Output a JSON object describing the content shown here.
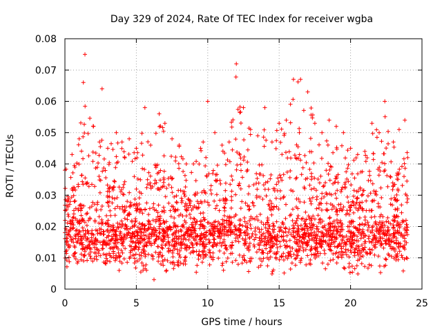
{
  "chart_data": {
    "type": "scatter",
    "title": "Day 329 of 2024, Rate Of TEC Index for receiver wgba",
    "xlabel": "GPS time / hours",
    "ylabel": "ROTI / TECUs",
    "xlim": [
      0,
      25
    ],
    "ylim": [
      0,
      0.08
    ],
    "x_ticks": [
      0,
      5,
      10,
      15,
      20,
      25
    ],
    "x_tick_labels": [
      "0",
      "5",
      "10",
      "15",
      "20",
      "25"
    ],
    "y_ticks": [
      0,
      0.01,
      0.02,
      0.03,
      0.04,
      0.05,
      0.06,
      0.07,
      0.08
    ],
    "y_tick_labels": [
      "0",
      "0.01",
      "0.02",
      "0.03",
      "0.04",
      "0.05",
      "0.06",
      "0.07",
      "0.08"
    ],
    "grid": true,
    "marker": "+",
    "series_color": "#ff0000",
    "series": [
      {
        "name": "ROTI",
        "x_range": [
          0,
          24
        ],
        "typical_range": [
          0.008,
          0.025
        ],
        "envelope": [
          {
            "hour": 0,
            "max": 0.038
          },
          {
            "hour": 0.5,
            "max": 0.043
          },
          {
            "hour": 1.0,
            "max": 0.048
          },
          {
            "hour": 1.4,
            "max": 0.075
          },
          {
            "hour": 2.0,
            "max": 0.052
          },
          {
            "hour": 2.6,
            "max": 0.064
          },
          {
            "hour": 3.0,
            "max": 0.045
          },
          {
            "hour": 3.6,
            "max": 0.05
          },
          {
            "hour": 4.0,
            "max": 0.047
          },
          {
            "hour": 4.5,
            "max": 0.048
          },
          {
            "hour": 5.0,
            "max": 0.045
          },
          {
            "hour": 5.6,
            "max": 0.058
          },
          {
            "hour": 6.0,
            "max": 0.046
          },
          {
            "hour": 6.6,
            "max": 0.056
          },
          {
            "hour": 7.0,
            "max": 0.053
          },
          {
            "hour": 7.5,
            "max": 0.048
          },
          {
            "hour": 8.0,
            "max": 0.046
          },
          {
            "hour": 8.5,
            "max": 0.04
          },
          {
            "hour": 9.0,
            "max": 0.04
          },
          {
            "hour": 9.5,
            "max": 0.045
          },
          {
            "hour": 10.0,
            "max": 0.06
          },
          {
            "hour": 10.5,
            "max": 0.05
          },
          {
            "hour": 11.0,
            "max": 0.046
          },
          {
            "hour": 11.5,
            "max": 0.047
          },
          {
            "hour": 12.0,
            "max": 0.072
          },
          {
            "hour": 12.5,
            "max": 0.058
          },
          {
            "hour": 13.0,
            "max": 0.051
          },
          {
            "hour": 13.5,
            "max": 0.049
          },
          {
            "hour": 14.0,
            "max": 0.058
          },
          {
            "hour": 14.5,
            "max": 0.047
          },
          {
            "hour": 15.0,
            "max": 0.053
          },
          {
            "hour": 15.5,
            "max": 0.054
          },
          {
            "hour": 16.0,
            "max": 0.067
          },
          {
            "hour": 16.5,
            "max": 0.067
          },
          {
            "hour": 17.0,
            "max": 0.063
          },
          {
            "hour": 17.5,
            "max": 0.053
          },
          {
            "hour": 18.0,
            "max": 0.05
          },
          {
            "hour": 18.5,
            "max": 0.054
          },
          {
            "hour": 19.0,
            "max": 0.052
          },
          {
            "hour": 19.5,
            "max": 0.05
          },
          {
            "hour": 20.0,
            "max": 0.045
          },
          {
            "hour": 20.5,
            "max": 0.043
          },
          {
            "hour": 21.0,
            "max": 0.044
          },
          {
            "hour": 21.5,
            "max": 0.053
          },
          {
            "hour": 22.0,
            "max": 0.05
          },
          {
            "hour": 22.4,
            "max": 0.06
          },
          {
            "hour": 23.0,
            "max": 0.047
          },
          {
            "hour": 23.4,
            "max": 0.051
          },
          {
            "hour": 23.8,
            "max": 0.054
          },
          {
            "hour": 24.0,
            "max": 0.042
          }
        ]
      }
    ]
  }
}
